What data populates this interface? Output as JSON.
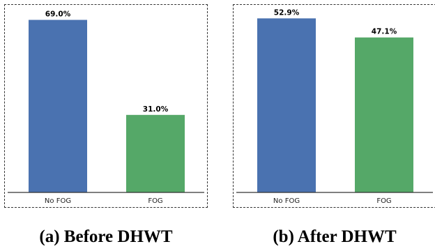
{
  "figure": {
    "captions": [
      "(a) Before DHWT",
      "(b) After DHWT"
    ]
  },
  "colors": {
    "no_fog": "#4a72b0",
    "fog": "#55a868",
    "axis": "#333333"
  },
  "chart_data": [
    {
      "type": "bar",
      "categories": [
        "No FOG",
        "FOG"
      ],
      "values": [
        69.0,
        31.0
      ],
      "data_labels": [
        "69.0%",
        "31.0%"
      ],
      "title": "",
      "xlabel": "",
      "ylabel": "",
      "ylim": [
        0,
        75
      ],
      "grid": false,
      "colors": [
        "#4a72b0",
        "#55a868"
      ]
    },
    {
      "type": "bar",
      "categories": [
        "No FOG",
        "FOG"
      ],
      "values": [
        52.9,
        47.1
      ],
      "data_labels": [
        "52.9%",
        "47.1%"
      ],
      "title": "",
      "xlabel": "",
      "ylabel": "",
      "ylim": [
        0,
        57
      ],
      "grid": false,
      "colors": [
        "#4a72b0",
        "#55a868"
      ]
    }
  ]
}
